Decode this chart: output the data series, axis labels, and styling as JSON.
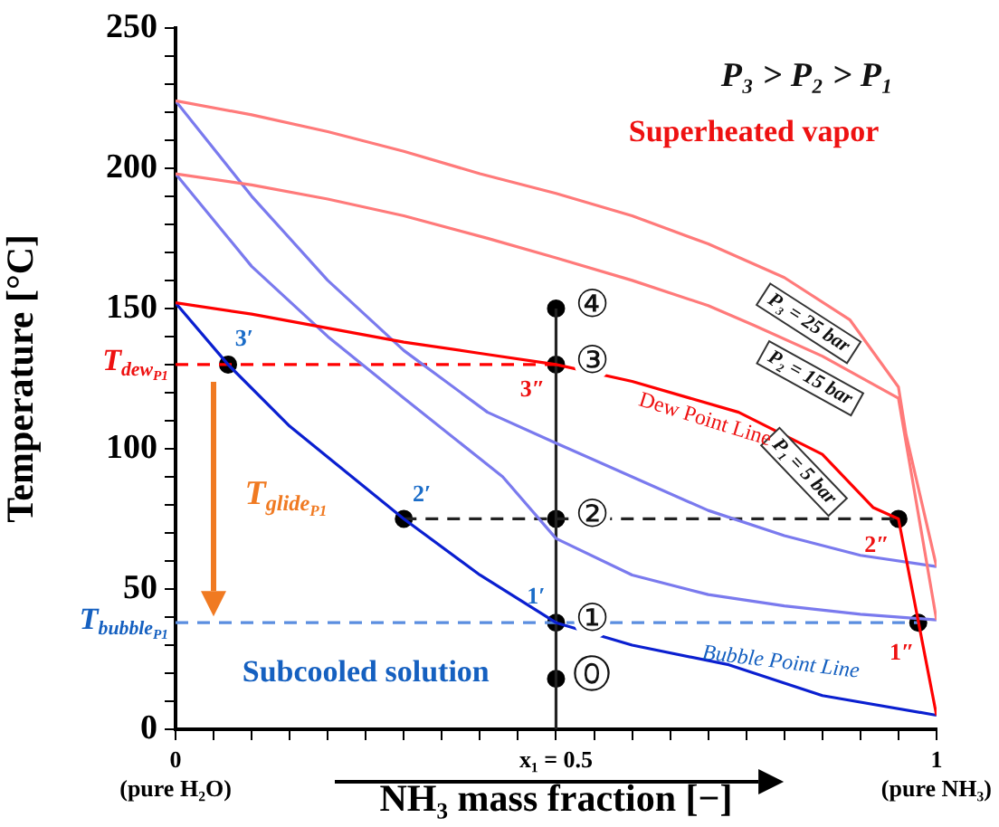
{
  "chart_data": {
    "type": "line",
    "xlabel": "NH₃ mass fraction [−]",
    "ylabel": "Temperature [°C]",
    "xlim": [
      0,
      1
    ],
    "ylim": [
      0,
      250
    ],
    "xticks": [
      {
        "value": 0,
        "label": "0\n(pure H₂O)"
      },
      {
        "value": 0.05,
        "label": null
      },
      {
        "value": 0.1,
        "label": null
      },
      {
        "value": 0.15,
        "label": null
      },
      {
        "value": 0.2,
        "label": null
      },
      {
        "value": 0.25,
        "label": null
      },
      {
        "value": 0.3,
        "label": null
      },
      {
        "value": 0.35,
        "label": null
      },
      {
        "value": 0.4,
        "label": null
      },
      {
        "value": 0.45,
        "label": null
      },
      {
        "value": 0.5,
        "label": "x₁ = 0.5"
      },
      {
        "value": 0.55,
        "label": null
      },
      {
        "value": 0.6,
        "label": null
      },
      {
        "value": 0.65,
        "label": null
      },
      {
        "value": 0.7,
        "label": null
      },
      {
        "value": 0.75,
        "label": null
      },
      {
        "value": 0.8,
        "label": null
      },
      {
        "value": 0.85,
        "label": null
      },
      {
        "value": 0.9,
        "label": null
      },
      {
        "value": 0.95,
        "label": null
      },
      {
        "value": 1,
        "label": "1\n(pure NH₃)"
      }
    ],
    "yticks": [
      0,
      {
        "value": 10,
        "label": null
      },
      {
        "value": 20,
        "label": null
      },
      {
        "value": 30,
        "label": null
      },
      {
        "value": 40,
        "label": null
      },
      50,
      {
        "value": 60,
        "label": null
      },
      {
        "value": 70,
        "label": null
      },
      {
        "value": 80,
        "label": null
      },
      {
        "value": 90,
        "label": null
      },
      100,
      {
        "value": 110,
        "label": null
      },
      {
        "value": 120,
        "label": null
      },
      {
        "value": 130,
        "label": null
      },
      {
        "value": 140,
        "label": null
      },
      150,
      {
        "value": 160,
        "label": null
      },
      {
        "value": 170,
        "label": null
      },
      {
        "value": 180,
        "label": null
      },
      {
        "value": 190,
        "label": null
      },
      200,
      {
        "value": 210,
        "label": null
      },
      {
        "value": 220,
        "label": null
      },
      {
        "value": 230,
        "label": null
      },
      {
        "value": 240,
        "label": null
      },
      250
    ],
    "grid": false,
    "series": [
      {
        "name": "P₁ = 5 bar",
        "color": "#ff0000",
        "x": [
          0,
          0.1,
          0.2,
          0.3,
          0.4,
          0.5,
          0.6,
          0.74,
          0.85,
          0.917,
          0.95,
          1
        ],
        "values": [
          152,
          148,
          143,
          138,
          134,
          130,
          124,
          113,
          98,
          79,
          75,
          5
        ]
      },
      {
        "name": "P₂ = 15 bar",
        "color": "#ff7a7a",
        "x": [
          0,
          0.1,
          0.2,
          0.3,
          0.41,
          0.5,
          0.6,
          0.7,
          0.76,
          0.85,
          0.95,
          1
        ],
        "values": [
          198,
          194,
          189,
          183,
          175,
          168,
          160,
          151,
          144,
          133,
          118,
          39
        ]
      },
      {
        "name": "P₃ = 25 bar",
        "color": "#ff7a7a",
        "x": [
          0,
          0.1,
          0.2,
          0.3,
          0.4,
          0.5,
          0.6,
          0.7,
          0.8,
          0.886,
          0.95,
          0.96,
          1
        ],
        "values": [
          224,
          219,
          213,
          206,
          198,
          191,
          183,
          173,
          161,
          146,
          122,
          105,
          58
        ]
      },
      {
        "color": "#0a1fd0",
        "x": [
          0,
          0.069,
          0.15,
          0.3,
          0.4,
          0.5,
          0.6,
          0.727,
          0.85,
          1
        ],
        "values": [
          152,
          130,
          108,
          75,
          55,
          38,
          30,
          23,
          12,
          5
        ]
      },
      {
        "color": "#7a7aee",
        "x": [
          0,
          0.1,
          0.2,
          0.3,
          0.43,
          0.5,
          0.6,
          0.7,
          0.8,
          0.9,
          1
        ],
        "values": [
          198,
          165,
          140,
          118,
          90,
          68,
          55,
          48,
          44,
          41,
          39
        ]
      },
      {
        "color": "#7a7aee",
        "x": [
          0,
          0.1,
          0.2,
          0.3,
          0.41,
          0.5,
          0.6,
          0.7,
          0.8,
          0.9,
          1
        ],
        "values": [
          224,
          190,
          160,
          135,
          113,
          102,
          90,
          78,
          69,
          62,
          58
        ]
      },
      {
        "color": "#ff0000",
        "line_style": "dashed",
        "x": [
          0,
          0.5
        ],
        "values": [
          130,
          130
        ]
      },
      {
        "color": "#222222",
        "line_style": "dashed",
        "x": [
          0.3,
          0.95
        ],
        "values": [
          75,
          75
        ]
      },
      {
        "color": "#5b8ee0",
        "line_style": "dashed",
        "x": [
          0,
          0.976
        ],
        "values": [
          38,
          38
        ]
      },
      {
        "color": "#222222",
        "x": [
          0.5,
          0.5
        ],
        "values": [
          0,
          150
        ]
      },
      {
        "type": "scatter",
        "marker": "circle",
        "color": "#000000",
        "x": [
          0.5,
          0.5,
          0.5,
          0.5,
          0.5,
          0.069,
          0.3,
          0.95,
          0.976
        ],
        "values": [
          18,
          38,
          75,
          130,
          150,
          130,
          75,
          75,
          38
        ]
      }
    ],
    "annotations": [
      "P₃ > P₂ > P₁",
      "Superheated vapor",
      "Subcooled solution",
      "T$_{glide}$$_{P1}$",
      {
        "text": "Dew Point Line",
        "x": 0.672,
        "y": 118
      },
      {
        "text": "Bubble Point Line",
        "x": 0.786,
        "y": 18
      },
      "T$_{dew}$$_{P1}$",
      "T$_{bubble}$$_{P1}$",
      {
        "text": "④",
        "x": 0.5,
        "y": 150
      },
      {
        "text": "③",
        "x": 0.5,
        "y": 130
      },
      {
        "text": "②",
        "x": 0.5,
        "y": 75
      },
      {
        "text": "①",
        "x": 0.5,
        "y": 38
      },
      {
        "text": "⓪",
        "x": 0.5,
        "y": 18
      },
      {
        "text": "3′",
        "x": 0.069,
        "y": 130
      },
      {
        "text": "2′",
        "x": 0.3,
        "y": 75
      },
      {
        "text": "1′",
        "x": 0.5,
        "y": 38
      },
      {
        "text": "3″",
        "x": 0.5,
        "y": 130
      },
      {
        "text": "2″",
        "x": 0.95,
        "y": 75
      },
      {
        "text": "1″",
        "x": 0.976,
        "y": 38
      }
    ]
  }
}
